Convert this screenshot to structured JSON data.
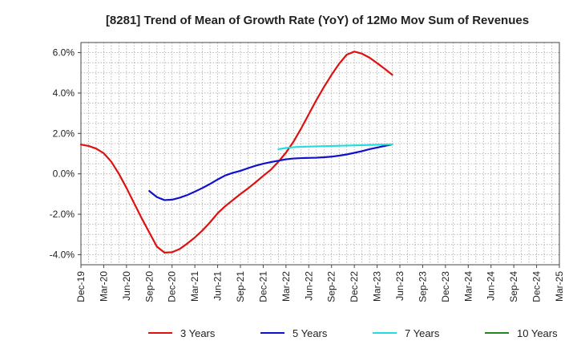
{
  "chart_data": {
    "type": "line",
    "title": "[8281]  Trend of Mean of Growth Rate (YoY) of 12Mo Mov Sum of Revenues",
    "xlabel": "",
    "ylabel": "",
    "x_ticks": [
      "Dec-19",
      "Mar-20",
      "Jun-20",
      "Sep-20",
      "Dec-20",
      "Mar-21",
      "Jun-21",
      "Sep-21",
      "Dec-21",
      "Mar-22",
      "Jun-22",
      "Sep-22",
      "Dec-22",
      "Mar-23",
      "Jun-23",
      "Sep-23",
      "Dec-23",
      "Mar-24",
      "Jun-24",
      "Sep-24",
      "Dec-24",
      "Mar-25"
    ],
    "ylim": [
      -4.5,
      6.5
    ],
    "y_ticks": [
      -4.0,
      -2.0,
      0.0,
      2.0,
      4.0,
      6.0
    ],
    "y_tick_labels": [
      "-4.0%",
      "-2.0%",
      "0.0%",
      "2.0%",
      "4.0%",
      "6.0%"
    ],
    "grid": true,
    "legend_position": "bottom",
    "series": [
      {
        "name": "3 Years",
        "color": "#dd1111",
        "points": [
          [
            0,
            1.45
          ],
          [
            1,
            1.38
          ],
          [
            2,
            1.25
          ],
          [
            3,
            1.02
          ],
          [
            4,
            0.6
          ],
          [
            5,
            0.0
          ],
          [
            6,
            -0.7
          ],
          [
            7,
            -1.45
          ],
          [
            8,
            -2.2
          ],
          [
            9,
            -2.9
          ],
          [
            10,
            -3.6
          ],
          [
            11,
            -3.9
          ],
          [
            12,
            -3.88
          ],
          [
            13,
            -3.72
          ],
          [
            14,
            -3.45
          ],
          [
            15,
            -3.15
          ],
          [
            16,
            -2.8
          ],
          [
            17,
            -2.4
          ],
          [
            18,
            -1.95
          ],
          [
            19,
            -1.6
          ],
          [
            20,
            -1.3
          ],
          [
            21,
            -1.0
          ],
          [
            22,
            -0.72
          ],
          [
            23,
            -0.42
          ],
          [
            24,
            -0.1
          ],
          [
            25,
            0.2
          ],
          [
            26,
            0.6
          ],
          [
            27,
            1.05
          ],
          [
            28,
            1.6
          ],
          [
            29,
            2.25
          ],
          [
            30,
            2.95
          ],
          [
            31,
            3.65
          ],
          [
            32,
            4.3
          ],
          [
            33,
            4.9
          ],
          [
            34,
            5.45
          ],
          [
            35,
            5.9
          ],
          [
            36,
            6.05
          ],
          [
            37,
            5.95
          ],
          [
            38,
            5.75
          ],
          [
            39,
            5.48
          ],
          [
            40,
            5.2
          ],
          [
            41,
            4.9
          ]
        ]
      },
      {
        "name": "5 Years",
        "color": "#1111cc",
        "points": [
          [
            9,
            -0.85
          ],
          [
            10,
            -1.15
          ],
          [
            11,
            -1.3
          ],
          [
            12,
            -1.28
          ],
          [
            13,
            -1.18
          ],
          [
            14,
            -1.05
          ],
          [
            15,
            -0.88
          ],
          [
            16,
            -0.7
          ],
          [
            17,
            -0.5
          ],
          [
            18,
            -0.28
          ],
          [
            19,
            -0.08
          ],
          [
            20,
            0.05
          ],
          [
            21,
            0.15
          ],
          [
            22,
            0.28
          ],
          [
            23,
            0.4
          ],
          [
            24,
            0.5
          ],
          [
            25,
            0.58
          ],
          [
            26,
            0.65
          ],
          [
            27,
            0.72
          ],
          [
            28,
            0.76
          ],
          [
            29,
            0.78
          ],
          [
            30,
            0.79
          ],
          [
            31,
            0.8
          ],
          [
            32,
            0.82
          ],
          [
            33,
            0.85
          ],
          [
            34,
            0.9
          ],
          [
            35,
            0.96
          ],
          [
            36,
            1.04
          ],
          [
            37,
            1.12
          ],
          [
            38,
            1.22
          ],
          [
            39,
            1.3
          ],
          [
            40,
            1.38
          ],
          [
            41,
            1.46
          ]
        ]
      },
      {
        "name": "7 Years",
        "color": "#22dddd",
        "points": [
          [
            26,
            1.22
          ],
          [
            27,
            1.28
          ],
          [
            28,
            1.32
          ],
          [
            29,
            1.34
          ],
          [
            30,
            1.35
          ],
          [
            31,
            1.36
          ],
          [
            32,
            1.37
          ],
          [
            33,
            1.38
          ],
          [
            34,
            1.39
          ],
          [
            35,
            1.4
          ],
          [
            36,
            1.41
          ],
          [
            37,
            1.42
          ],
          [
            38,
            1.43
          ],
          [
            39,
            1.44
          ],
          [
            40,
            1.45
          ],
          [
            41,
            1.46
          ]
        ]
      },
      {
        "name": "10 Years",
        "color": "#228822",
        "points": []
      }
    ]
  }
}
